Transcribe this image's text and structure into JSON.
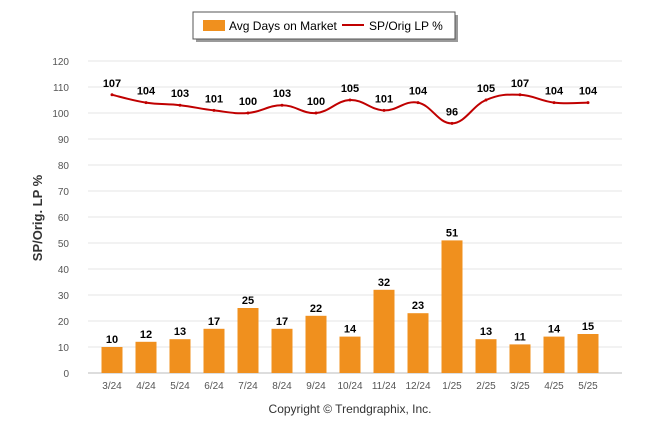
{
  "chart_data": {
    "type": "bar",
    "categories": [
      "3/24",
      "4/24",
      "5/24",
      "6/24",
      "7/24",
      "8/24",
      "9/24",
      "10/24",
      "11/24",
      "12/24",
      "1/25",
      "2/25",
      "3/25",
      "4/25",
      "5/25"
    ],
    "series": [
      {
        "name": "Avg Days on Market",
        "type": "bar",
        "color": "#f0901e",
        "values": [
          10,
          12,
          13,
          17,
          25,
          17,
          22,
          14,
          32,
          23,
          51,
          13,
          11,
          14,
          15
        ]
      },
      {
        "name": "SP/Orig LP %",
        "type": "line",
        "color": "#c00000",
        "values": [
          107,
          104,
          103,
          101,
          100,
          103,
          100,
          105,
          101,
          104,
          96,
          105,
          107,
          104,
          104
        ]
      }
    ],
    "ylabel": "SP/Orig. LP %",
    "xlabel": "",
    "ylim": [
      0,
      120
    ],
    "yticks": [
      0,
      10,
      20,
      30,
      40,
      50,
      60,
      70,
      80,
      90,
      100,
      110,
      120
    ],
    "grid": true,
    "legend_position": "top-center",
    "credit": "Copyright © Trendgraphix, Inc."
  }
}
